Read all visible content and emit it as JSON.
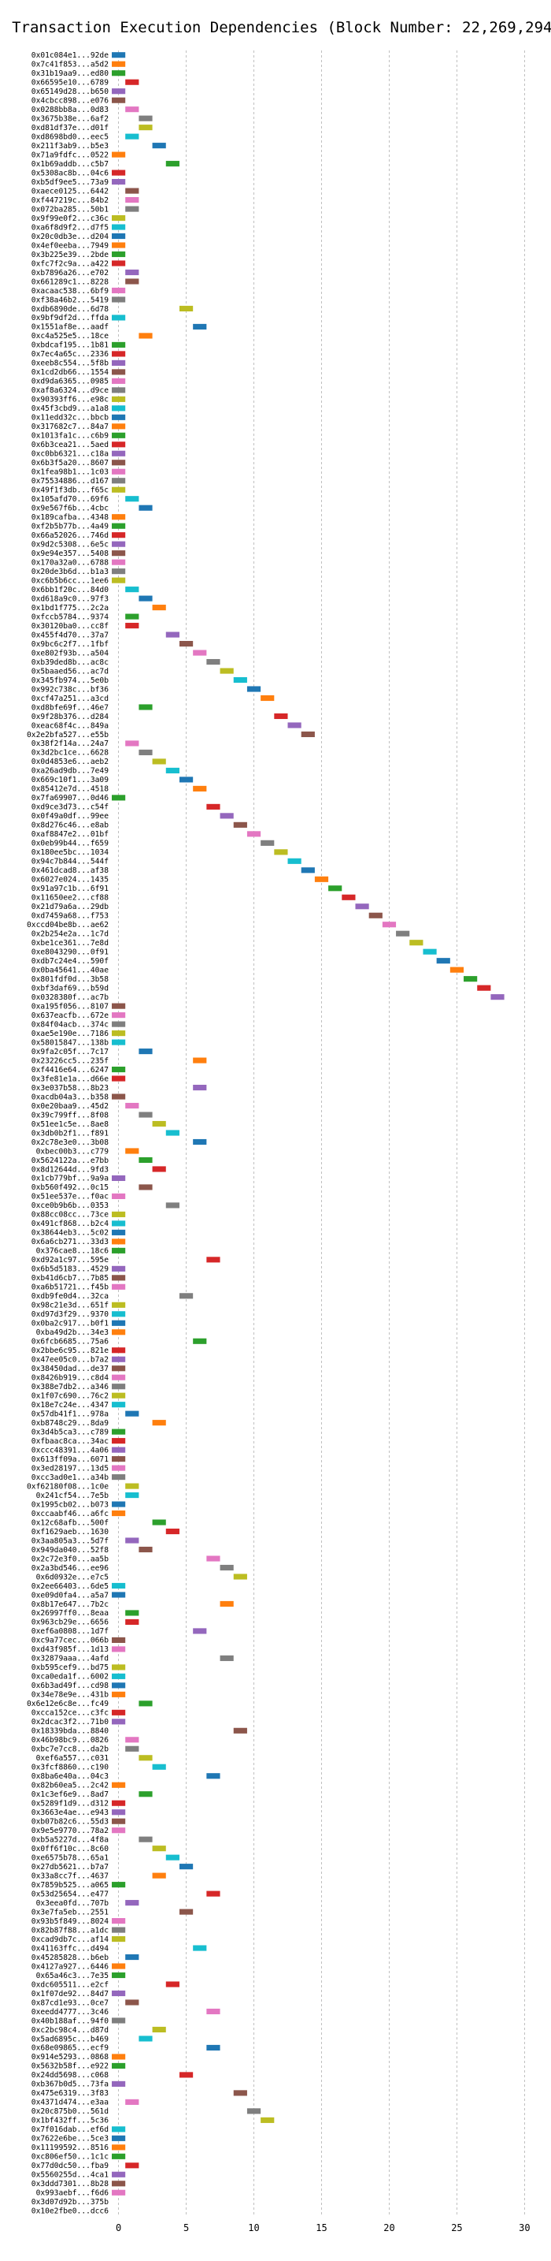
{
  "chart_data": {
    "type": "bar",
    "orientation": "horizontal",
    "title": "Transaction Execution Dependencies (Block Number: 22,269,294)",
    "xlabel": "",
    "ylabel": "",
    "xlim": [
      -0.5,
      30.5
    ],
    "xticks": [
      0,
      5,
      10,
      15,
      20,
      25,
      30
    ],
    "grid": "vertical dashed",
    "palette": [
      "#1f77b4",
      "#ff7f0e",
      "#2ca02c",
      "#d62728",
      "#9467bd",
      "#8c564b",
      "#e377c2",
      "#7f7f7f",
      "#bcbd22",
      "#17becf"
    ],
    "bar_span": 1,
    "labels": [
      "0x01c084e1...92de",
      "0x7c41f853...a5d2",
      "0x31b19aa9...ed80",
      "0x66595e10...6789",
      "0x65149d28...b650",
      "0x4cbcc898...e076",
      "0x0288bb8a...0d83",
      "0x3675b38e...6af2",
      "0xd81df37e...d01f",
      "0xd8698bd0...eec5",
      "0x211f3ab9...b5e3",
      "0x71a9fdfc...0522",
      "0x1b69addb...c5b7",
      "0x5308ac8b...04c6",
      "0xb5df9ee5...73a9",
      "0xaece0125...6442",
      "0xf447219c...84b2",
      "0x072ba285...50b1",
      "0x9f99e0f2...c36c",
      "0xa6f8d9f2...d7f5",
      "0x20c0db3e...d204",
      "0x4ef0eeba...7949",
      "0x3b225e39...2bde",
      "0xfc7f2c9a...a422",
      "0xb7896a26...e702",
      "0x661289c1...8228",
      "0xacaac538...6bf9",
      "0xf38a46b2...5419",
      "0xdb6890de...6d78",
      "0x9bf9df2d...ffda",
      "0x1551af8e...aadf",
      "0xc4a525e5...18ce",
      "0xbdcaf195...1b81",
      "0x7ec4a65c...2336",
      "0xeeb8c554...5f8b",
      "0x1cd2db66...1554",
      "0xd9da6365...0985",
      "0xaf8a6324...d9ce",
      "0x90393ff6...e98c",
      "0x45f3cbd9...a1a8",
      "0x11edd32c...bbcb",
      "0x317682c7...84a7",
      "0x1013fa1c...c6b9",
      "0x6b3cea21...5aed",
      "0xc0bb6321...c18a",
      "0x6b3f5a20...8607",
      "0x1fea98b1...1c03",
      "0x75534886...d167",
      "0x49f1f3db...f65c",
      "0x105afd70...69f6",
      "0x9e567f6b...4cbc",
      "0x189cafba...4348",
      "0xf2b5b77b...4a49",
      "0x66a52026...746d",
      "0x9d2c5308...6e5c",
      "0x9e94e357...5408",
      "0x170a32a0...6788",
      "0x20de3b6d...b1a3",
      "0xc6b5b6cc...1ee6",
      "0x6bb1f20c...84d0",
      "0xd618a9c0...97f3",
      "0x1bd1f775...2c2a",
      "0xfccb5784...9374",
      "0x30120ba0...cc8f",
      "0x455f4d70...37a7",
      "0x9bc6c2f7...1fbf",
      "0xe802f93b...a504",
      "0xb39ded8b...ac8c",
      "0x5baaed56...ac7d",
      "0x345fb974...5e0b",
      "0x992c738c...bf36",
      "0xcf47a251...a3cd",
      "0xd8bfe69f...46e7",
      "0x9f28b376...d284",
      "0xeac68f4c...849a",
      "0x2e2bfa527...e55b",
      "0x38f2f14a...24a7",
      "0x3d2bc1ce...6628",
      "0x0d4853e6...aeb2",
      "0xa26ad9db...7e49",
      "0x669c10f1...3a09",
      "0x85412e7d...4518",
      "0x7fa69907...0d46",
      "0xd9ce3d73...c54f",
      "0x0f49a0df...99ee",
      "0x8d276c46...e8ab",
      "0xaf8847e2...01bf",
      "0x0eb99b44...f659",
      "0x180ee5bc...1034",
      "0x94c7b844...544f",
      "0x461dcad8...af38",
      "0x6027e024...1435",
      "0x91a97c1b...6f91",
      "0x11650ee2...cf88",
      "0x21d79a6a...29db",
      "0xd7459a68...f753",
      "0xccd04be8b...ae62",
      "0x2b254e2a...1c7d",
      "0xbe1ce361...7e8d",
      "0xe8043290...0f91",
      "0xdb7c24e4...590f",
      "0x0ba45641...40ae",
      "0x801fdf0d...3b58",
      "0xbf3daf69...b59d",
      "0x0328380f...ac7b",
      "0xa195f056...8107",
      "0x637eacfb...672e",
      "0x84f04acb...374c",
      "0xae5e190e...7186",
      "0x58015847...138b",
      "0x9fa2c05f...7c17",
      "0x23226cc5...235f",
      "0xf4416e64...6247",
      "0x3fe81e1a...d66e",
      "0x3e037b58...8b23",
      "0xacdb04a3...b358",
      "0x0e20baa9...45d2",
      "0x39c799ff...8f08",
      "0x51ee1c5e...8ae8",
      "0x3db0b2f1...f891",
      "0x2c78e3e0...3b08",
      "0xbec00b3...c779",
      "0x5624122a...e7bb",
      "0x8d12644d...9fd3",
      "0x1cb779bf...9a9a",
      "0xb560f492...0c15",
      "0x51ee537e...f0ac",
      "0xce0b9b6b...0353",
      "0x88cc08cc...73ce",
      "0x491cf868...b2c4",
      "0x38644eb3...5c02",
      "0x6a6cb271...33d3",
      "0x376cae8...18c6",
      "0xd92a1c97...595e",
      "0x6b5d5183...4529",
      "0xb41d6cb7...7b85",
      "0xa6b51721...f45b",
      "0xdb9fe0d4...32ca",
      "0x98c21e3d...651f",
      "0xd97d3f29...9370",
      "0x0ba2c917...b0f1",
      "0xba49d2b...34e3",
      "0x6fcb6685...75a6",
      "0x2bbe6c95...821e",
      "0x47ee05c0...b7a2",
      "0x38450dad...de37",
      "0x8426b919...c8d4",
      "0x388e7db2...a346",
      "0x1f07c690...76c2",
      "0x18e7c24e...4347",
      "0x57db41f1...978a",
      "0xb8748c29...8da9",
      "0x3d4b5ca3...c789",
      "0xfbaac8ca...34ac",
      "0xccc48391...4a06",
      "0x613ff09a...6071",
      "0x3ed28197...13d5",
      "0xcc3ad0e1...a34b",
      "0xf62180f08...1c0e",
      "0x241cf54...7e5b",
      "0x1995cb02...b073",
      "0xccaabf46...a6fc",
      "0x12c68afb...500f",
      "0xf1629aeb...1630",
      "0x3aa805a3...5d7f",
      "0x949da040...52f8",
      "0x2c72e3f0...aa5b",
      "0x2a3bd546...ee96",
      "0x6d0932e...e7c5",
      "0x2ee66403...6de5",
      "0xe09d0fa4...a5a7",
      "0x8b17e647...7b2c",
      "0x26997ff0...8eaa",
      "0x963cb29e...6656",
      "0xef6a0808...1d7f",
      "0xc9a77cec...066b",
      "0xd43f985f...1d13",
      "0x32879aaa...4afd",
      "0xb595cef9...bd75",
      "0xca0eda1f...6002",
      "0x6b3ad49f...cd98",
      "0x34e78e9e...431b",
      "0x6e12e6c8e...fc49",
      "0xcca152ce...c3fc",
      "0x2dcac3f2...71b0",
      "0x18339bda...8840",
      "0x46b98bc9...0826",
      "0xbc7e7cc8...da2b",
      "0xef6a557...c031",
      "0x3fcf8860...c190",
      "0x8ba6e40a...04c3",
      "0x82b60ea5...2c42",
      "0x1c3ef6e9...8ad7",
      "0x5289f1d9...d312",
      "0x3663e4ae...e943",
      "0xb07b82c6...55d3",
      "0x9e5e9770...78a2",
      "0xb5a5227d...4f8a",
      "0x0ff6f10c...8c60",
      "0xe6575b78...65a1",
      "0x27db5621...b7a7",
      "0x33a8cc7f...4637",
      "0x7859b525...a065",
      "0x53d25654...e477",
      "0x3eea0fd...707b",
      "0x3e7fa5eb...2551",
      "0x93b5f849...8024",
      "0x82b87f88...a1dc",
      "0xcad9db7c...af14",
      "0x41163ffc...d494",
      "0x45285828...b6eb",
      "0x4127a927...6446",
      "0x65a46c3...7e35",
      "0xdc605511...e2cf",
      "0x1f07de92...84d7",
      "0x87cd1e93...0ce7",
      "0xeedd4777...3c46",
      "0x40b188af...94f0",
      "0xc2bc98c4...d87d",
      "0x5ad6895c...b469",
      "0x68e09865...ecf9",
      "0x914e5293...0868",
      "0x5632b58f...e922",
      "0x24dd5698...c068",
      "0xb367b0d5...73fa",
      "0x475e6319...3f83",
      "0x4371d474...e3aa",
      "0x20c875b0...561d",
      "0x1bf432ff...5c36",
      "0x7f016dab...ef6d",
      "0x7622e6be...5ce3",
      "0x11199592...8516",
      "0xc806ef50...1c1c",
      "0x77d0dc50...fba9",
      "0x5560255d...4ca1",
      "0x3ddd7301...8b28",
      "0x993aebf...f6d6",
      "0x3d07d92b...375b",
      "0x10e2fbe0...dcc6"
    ],
    "starts": [
      0,
      0,
      0,
      1,
      0,
      0,
      1,
      2,
      2,
      1,
      3,
      0,
      4,
      0,
      0,
      1,
      1,
      1,
      0,
      0,
      0,
      0,
      0,
      0,
      1,
      1,
      0,
      0,
      5,
      0,
      6,
      2,
      0,
      0,
      0,
      0,
      0,
      0,
      0,
      0,
      0,
      0,
      0,
      0,
      0,
      0,
      0,
      0,
      0,
      1,
      2,
      0,
      0,
      0,
      0,
      0,
      0,
      0,
      0,
      1,
      2,
      3,
      1,
      1,
      4,
      5,
      6,
      7,
      8,
      9,
      10,
      11,
      2,
      12,
      13,
      14,
      1,
      2,
      3,
      4,
      5,
      6,
      0,
      7,
      8,
      9,
      10,
      11,
      12,
      13,
      14,
      15,
      16,
      17,
      18,
      19,
      20,
      21,
      22,
      23,
      24,
      25,
      26,
      27,
      28,
      0,
      0,
      0,
      0,
      0,
      2,
      6,
      0,
      0,
      6,
      0,
      1,
      2,
      3,
      4,
      6,
      1,
      2,
      3,
      0,
      2,
      0,
      4,
      0,
      0,
      0,
      0,
      0,
      7,
      0,
      0,
      0,
      5,
      0,
      0,
      0,
      0,
      6,
      0,
      0,
      0,
      0,
      0,
      0,
      0,
      1,
      3,
      0,
      0,
      0,
      0,
      0,
      0,
      1,
      1,
      0,
      0,
      3,
      4,
      1,
      2,
      7,
      8,
      9,
      0,
      0,
      8,
      1,
      1,
      6,
      0,
      0,
      8,
      0,
      0,
      0,
      0,
      2,
      0,
      0,
      9,
      1,
      1,
      2,
      3,
      7,
      0,
      2,
      0,
      0,
      0,
      0,
      2,
      3,
      4,
      5,
      3,
      0,
      7,
      1,
      5,
      0,
      0,
      0,
      6,
      1,
      0,
      0,
      4,
      0,
      1,
      7,
      0,
      3,
      2,
      7,
      0,
      0,
      5,
      0,
      9,
      1,
      10,
      11,
      0,
      0,
      0,
      0,
      1,
      0,
      0,
      0
    ],
    "colors": [
      0,
      1,
      2,
      3,
      4,
      5,
      6,
      7,
      8,
      9,
      0,
      1,
      2,
      3,
      4,
      5,
      6,
      7,
      8,
      9,
      0,
      1,
      2,
      3,
      4,
      5,
      6,
      7,
      8,
      9,
      0,
      1,
      2,
      3,
      4,
      5,
      6,
      7,
      8,
      9,
      0,
      1,
      2,
      3,
      4,
      5,
      6,
      7,
      8,
      9,
      0,
      1,
      2,
      3,
      4,
      5,
      6,
      7,
      8,
      9,
      0,
      1,
      2,
      3,
      4,
      5,
      6,
      7,
      8,
      9,
      0,
      1,
      2,
      3,
      4,
      5,
      6,
      7,
      8,
      9,
      0,
      1,
      2,
      3,
      4,
      5,
      6,
      7,
      8,
      9,
      0,
      1,
      2,
      3,
      4,
      5,
      6,
      7,
      8,
      9,
      0,
      1,
      2,
      3,
      4,
      5,
      6,
      7,
      8,
      9,
      0,
      1,
      2,
      3,
      4,
      5,
      6,
      7,
      8,
      9,
      0,
      1,
      2,
      3,
      4,
      5,
      6,
      7,
      8,
      9,
      0,
      1,
      2,
      3,
      4,
      5,
      6,
      7,
      8,
      9,
      0,
      1,
      2,
      3,
      4,
      5,
      6,
      7,
      8,
      9,
      0,
      1,
      2,
      3,
      4,
      5,
      6,
      7,
      8,
      9,
      0,
      1,
      2,
      3,
      4,
      5,
      6,
      7,
      8,
      9,
      0,
      1,
      2,
      3,
      4,
      5,
      6,
      7,
      8,
      9,
      0,
      1,
      2,
      3,
      4,
      5,
      6,
      7,
      8,
      9,
      0,
      1,
      2,
      3,
      4,
      5,
      6,
      7,
      8,
      9,
      0,
      1,
      2,
      3,
      4,
      5,
      6,
      7,
      8,
      9,
      0,
      1,
      2,
      3,
      4,
      5,
      6,
      7,
      8,
      9,
      0,
      1,
      2,
      3,
      4,
      5,
      6,
      7,
      8,
      9,
      0,
      1,
      2,
      3,
      4,
      5,
      6,
      7,
      8,
      9,
      0,
      1,
      2,
      3,
      4,
      5,
      6,
      7,
      8,
      9,
      0,
      1,
      2,
      3,
      4,
      5,
      6,
      7,
      8,
      9,
      0,
      1,
      2,
      3
    ]
  }
}
